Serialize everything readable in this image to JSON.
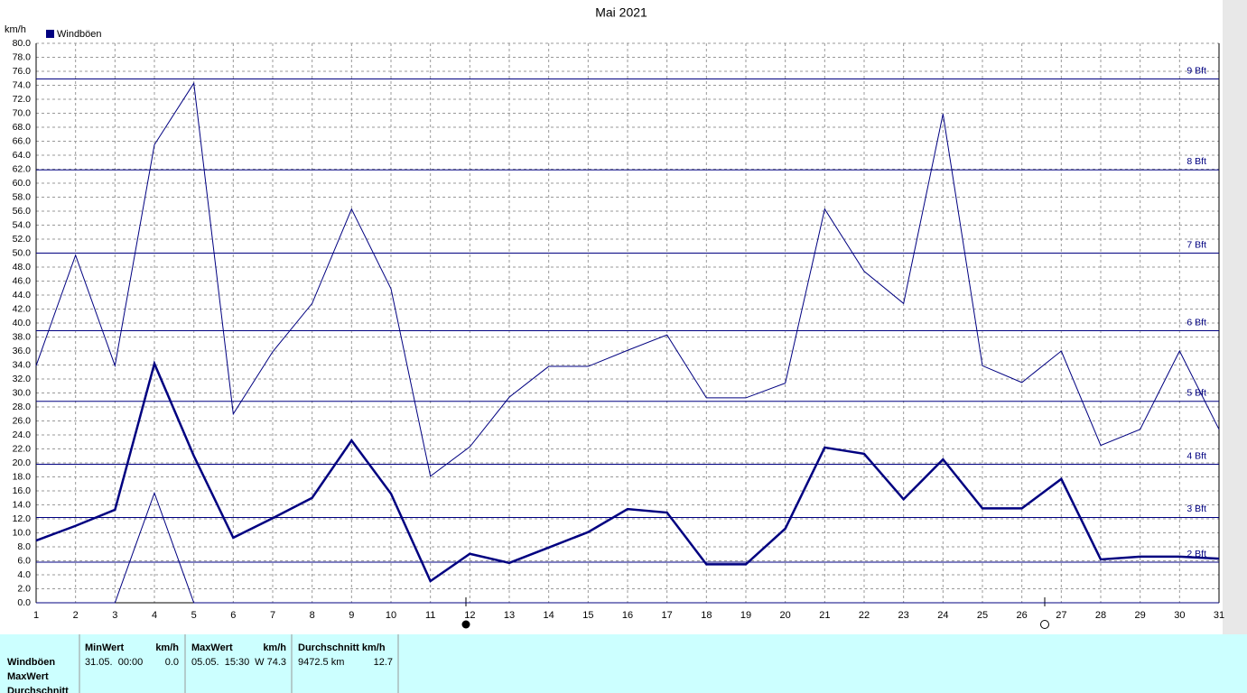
{
  "chart_data": {
    "type": "line",
    "title": "Mai 2021",
    "y_label": "km/h",
    "legend": "Windböen",
    "legend_color": "#000080",
    "x": [
      1,
      2,
      3,
      4,
      5,
      6,
      7,
      8,
      9,
      10,
      11,
      12,
      13,
      14,
      15,
      16,
      17,
      18,
      19,
      20,
      21,
      22,
      23,
      24,
      25,
      26,
      27,
      28,
      29,
      30,
      31
    ],
    "xlim": [
      1,
      31
    ],
    "xticks": [
      1,
      2,
      3,
      4,
      5,
      6,
      7,
      8,
      9,
      10,
      11,
      12,
      13,
      14,
      15,
      16,
      17,
      18,
      19,
      20,
      21,
      22,
      23,
      24,
      25,
      26,
      27,
      28,
      29,
      30,
      31
    ],
    "ylim": [
      0,
      80
    ],
    "grid": true,
    "yticks": [
      {
        "value": 0,
        "label": "0.0"
      },
      {
        "value": 2,
        "label": "2.0"
      },
      {
        "value": 4,
        "label": "4.0"
      },
      {
        "value": 6,
        "label": "6.0"
      },
      {
        "value": 8,
        "label": "8.0"
      },
      {
        "value": 10,
        "label": "10.0"
      },
      {
        "value": 12,
        "label": "12.0"
      },
      {
        "value": 14,
        "label": "14.0"
      },
      {
        "value": 16,
        "label": "16.0"
      },
      {
        "value": 18,
        "label": "18.0"
      },
      {
        "value": 20,
        "label": "20.0"
      },
      {
        "value": 22,
        "label": "22.0"
      },
      {
        "value": 24,
        "label": "24.0"
      },
      {
        "value": 26,
        "label": "26.0"
      },
      {
        "value": 28,
        "label": "28.0"
      },
      {
        "value": 30,
        "label": "30.0"
      },
      {
        "value": 32,
        "label": "32.0"
      },
      {
        "value": 34,
        "label": "34.0"
      },
      {
        "value": 36,
        "label": "36.0"
      },
      {
        "value": 38,
        "label": "38.0"
      },
      {
        "value": 40,
        "label": "40.0"
      },
      {
        "value": 42,
        "label": "42.0"
      },
      {
        "value": 44,
        "label": "44.0"
      },
      {
        "value": 46,
        "label": "46.0"
      },
      {
        "value": 48,
        "label": "48.0"
      },
      {
        "value": 50,
        "label": "50.0"
      },
      {
        "value": 52,
        "label": "52.0"
      },
      {
        "value": 54,
        "label": "54.0"
      },
      {
        "value": 56,
        "label": "56.0"
      },
      {
        "value": 58,
        "label": "58.0"
      },
      {
        "value": 60,
        "label": "60.0"
      },
      {
        "value": 62,
        "label": "62.0"
      },
      {
        "value": 64,
        "label": "64.0"
      },
      {
        "value": 66,
        "label": "66.0"
      },
      {
        "value": 68,
        "label": "68.0"
      },
      {
        "value": 70,
        "label": "70.0"
      },
      {
        "value": 72,
        "label": "72.0"
      },
      {
        "value": 74,
        "label": "74.0"
      },
      {
        "value": 76,
        "label": "76.0"
      },
      {
        "value": 78,
        "label": "78.0"
      },
      {
        "value": 80,
        "label": "80.0"
      }
    ],
    "reference_lines": [
      {
        "value": 5.8,
        "label": "2 Bft"
      },
      {
        "value": 12.2,
        "label": "3 Bft"
      },
      {
        "value": 19.8,
        "label": "4 Bft"
      },
      {
        "value": 28.8,
        "label": "5 Bft"
      },
      {
        "value": 38.9,
        "label": "6 Bft"
      },
      {
        "value": 50.0,
        "label": "7 Bft"
      },
      {
        "value": 61.9,
        "label": "8 Bft"
      },
      {
        "value": 74.9,
        "label": "9 Bft"
      }
    ],
    "series": [
      {
        "name": "MaxWert",
        "color": "#000080",
        "width": 1,
        "values": [
          33.9,
          49.7,
          33.9,
          65.5,
          74.3,
          27,
          35.9,
          42.8,
          56.3,
          44.9,
          18.1,
          22.3,
          29.4,
          33.8,
          33.8,
          36.1,
          38.3,
          29.3,
          29.3,
          31.4,
          56.3,
          47.4,
          42.8,
          69.9,
          33.9,
          31.5,
          36,
          22.5,
          24.8,
          36,
          24.8
        ]
      },
      {
        "name": "Durchschnitt",
        "color": "#000080",
        "width": 2.5,
        "values": [
          8.9,
          11,
          13.3,
          34.2,
          21,
          9.3,
          12.1,
          15,
          23.2,
          15.6,
          3.1,
          7,
          5.7,
          7.9,
          10.1,
          13.4,
          12.9,
          5.5,
          5.5,
          10.6,
          22.2,
          21.3,
          14.8,
          20.5,
          13.5,
          13.5,
          17.7,
          6.2,
          6.6,
          6.6,
          6.3
        ]
      },
      {
        "name": "MinWert",
        "color": "#000080",
        "width": 1,
        "values": [
          0,
          0,
          0,
          15.7,
          0,
          0,
          0,
          0,
          0,
          0,
          0,
          0,
          0,
          0,
          0,
          0,
          0,
          0,
          0,
          0,
          0,
          0,
          0,
          0,
          0,
          0,
          0,
          0,
          0,
          0,
          0
        ]
      }
    ]
  },
  "table": {
    "headers": [
      "MinWert",
      "km/h",
      "MaxWert",
      "km/h",
      "Durchschnitt km/h"
    ],
    "row_labels": [
      "Windböen",
      "MaxWert",
      "Durchschnitt"
    ],
    "rows": [
      [
        "31.05.  00:00",
        "0.0",
        "05.05.  15:30",
        "W 74.3",
        "9472.5 km",
        "12.7"
      ]
    ]
  }
}
